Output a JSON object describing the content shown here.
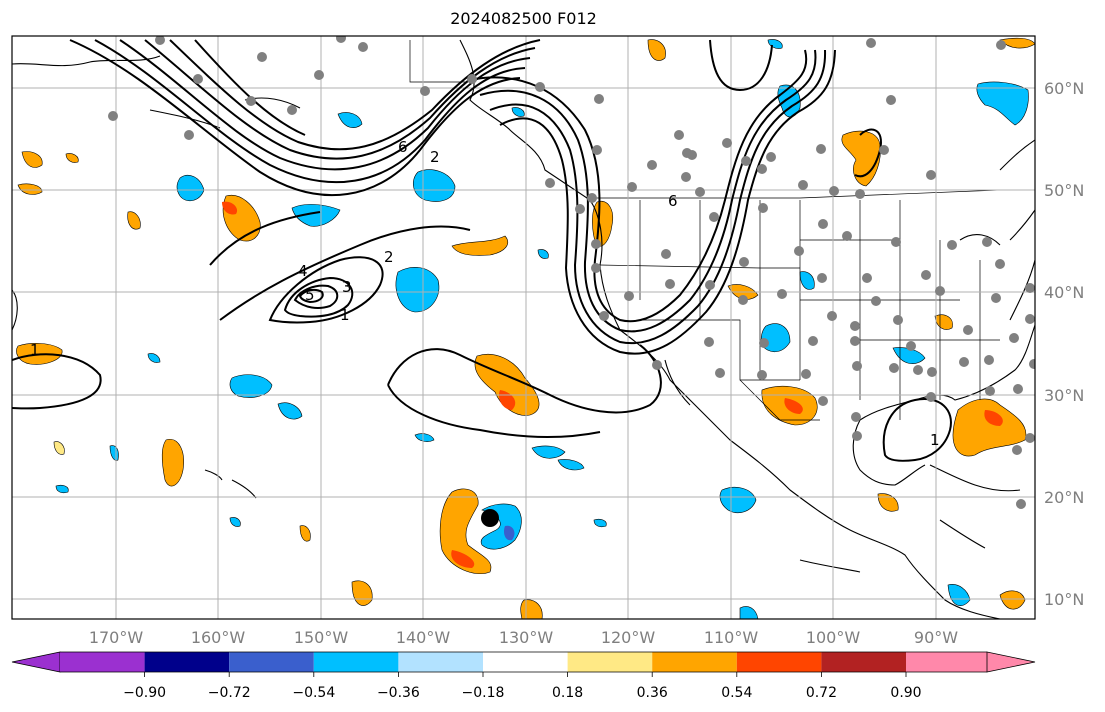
{
  "title": "2024082500 F012",
  "lon_labels": [
    "170°W",
    "160°W",
    "150°W",
    "140°W",
    "130°W",
    "120°W",
    "110°W",
    "100°W",
    "90°W"
  ],
  "lat_labels": [
    "60°N",
    "50°N",
    "40°N",
    "30°N",
    "20°N",
    "10°N"
  ],
  "colorbar": {
    "colors": [
      "#9b30d0",
      "#00008b",
      "#3a5fcd",
      "#00bfff",
      "#b2e2ff",
      "#ffffff",
      "#ffe985",
      "#ffa500",
      "#ff4500",
      "#b22222",
      "#ff88aa"
    ],
    "tick_labels": [
      "−0.90",
      "−0.72",
      "−0.54",
      "−0.36",
      "−0.18",
      "0.18",
      "0.36",
      "0.54",
      "0.72",
      "0.90"
    ]
  },
  "contour_labels": [
    "6",
    "2",
    "5",
    "4",
    "3",
    "2",
    "1",
    "6",
    "1",
    "1"
  ],
  "colors": {
    "orange": "#ffa500",
    "red": "#ff4500",
    "yellow": "#ffe985",
    "cyan": "#00bfff",
    "lightblue": "#b2e2ff",
    "blue": "#3a5fcd",
    "station": "#808080",
    "grid": "#b0b0b0"
  }
}
